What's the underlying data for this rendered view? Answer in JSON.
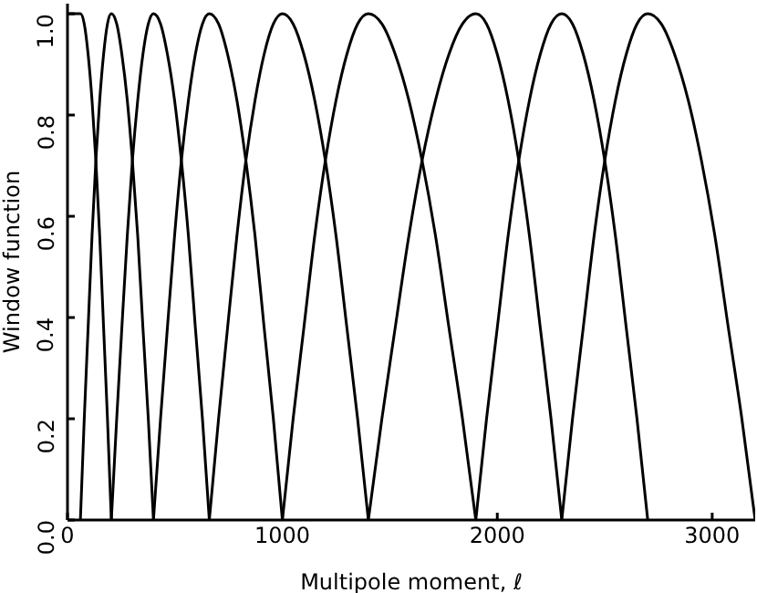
{
  "chart_data": {
    "type": "line",
    "xlabel": "Multipole moment, ℓ",
    "ylabel": "Window function",
    "xlim": [
      0,
      3200
    ],
    "xticks": [
      0,
      1000,
      2000,
      3000
    ],
    "ylim": [
      0,
      1.02
    ],
    "yticks": [
      {
        "value": 0,
        "label": "0.0"
      },
      {
        "value": 0.2,
        "label": "0.2"
      },
      {
        "value": 0.4,
        "label": "0.4"
      },
      {
        "value": 0.6,
        "label": "0.6"
      },
      {
        "value": 0.8,
        "label": "0.8"
      },
      {
        "value": 1,
        "label": "1.0"
      }
    ],
    "grid": false,
    "legend": false,
    "marker": "none",
    "line_style": "solid",
    "series": [
      {
        "color": "#000000",
        "x": [
          0,
          60,
          78,
          96,
          114,
          132,
          150,
          168,
          186,
          204
        ],
        "values": [
          1,
          1,
          0.98,
          0.92,
          0.83,
          0.71,
          0.56,
          0.38,
          0.2,
          0
        ]
      },
      {
        "color": "#000000",
        "x": [
          60,
          78,
          96,
          114,
          132,
          150,
          168,
          186,
          204,
          229,
          253,
          278,
          302,
          327,
          351,
          376,
          400
        ],
        "values": [
          0,
          0.2,
          0.38,
          0.56,
          0.71,
          0.83,
          0.92,
          0.98,
          1,
          0.98,
          0.92,
          0.83,
          0.71,
          0.56,
          0.38,
          0.2,
          0
        ]
      },
      {
        "color": "#000000",
        "x": [
          204,
          229,
          253,
          278,
          302,
          327,
          351,
          376,
          400,
          433,
          465,
          498,
          530,
          563,
          595,
          628,
          660
        ],
        "values": [
          0,
          0.2,
          0.38,
          0.56,
          0.71,
          0.83,
          0.92,
          0.98,
          1,
          0.98,
          0.92,
          0.83,
          0.71,
          0.56,
          0.38,
          0.2,
          0
        ]
      },
      {
        "color": "#000000",
        "x": [
          400,
          433,
          465,
          498,
          530,
          563,
          595,
          628,
          660,
          703,
          745,
          788,
          830,
          873,
          915,
          958,
          1000
        ],
        "values": [
          0,
          0.2,
          0.38,
          0.56,
          0.71,
          0.83,
          0.92,
          0.98,
          1,
          0.98,
          0.92,
          0.83,
          0.71,
          0.56,
          0.38,
          0.2,
          0
        ]
      },
      {
        "color": "#000000",
        "x": [
          660,
          703,
          745,
          788,
          830,
          873,
          915,
          958,
          1000,
          1050,
          1100,
          1150,
          1200,
          1250,
          1300,
          1350,
          1400
        ],
        "values": [
          0,
          0.2,
          0.38,
          0.56,
          0.71,
          0.83,
          0.92,
          0.98,
          1,
          0.98,
          0.92,
          0.83,
          0.71,
          0.56,
          0.38,
          0.2,
          0
        ]
      },
      {
        "color": "#000000",
        "x": [
          1000,
          1050,
          1100,
          1150,
          1200,
          1250,
          1300,
          1350,
          1400,
          1463,
          1525,
          1588,
          1650,
          1713,
          1775,
          1838,
          1900
        ],
        "values": [
          0,
          0.2,
          0.38,
          0.56,
          0.71,
          0.83,
          0.92,
          0.98,
          1,
          0.98,
          0.92,
          0.83,
          0.71,
          0.56,
          0.38,
          0.2,
          0
        ]
      },
      {
        "color": "#000000",
        "x": [
          1400,
          1463,
          1525,
          1588,
          1650,
          1713,
          1775,
          1838,
          1900,
          1950,
          2000,
          2050,
          2100,
          2150,
          2200,
          2250,
          2300
        ],
        "values": [
          0,
          0.2,
          0.38,
          0.56,
          0.71,
          0.83,
          0.92,
          0.98,
          1,
          0.98,
          0.92,
          0.83,
          0.71,
          0.56,
          0.38,
          0.2,
          0
        ]
      },
      {
        "color": "#000000",
        "x": [
          1900,
          1950,
          2000,
          2050,
          2100,
          2150,
          2200,
          2250,
          2300,
          2350,
          2400,
          2450,
          2500,
          2550,
          2600,
          2650,
          2700
        ],
        "values": [
          0,
          0.2,
          0.38,
          0.56,
          0.71,
          0.83,
          0.92,
          0.98,
          1,
          0.98,
          0.92,
          0.83,
          0.71,
          0.56,
          0.38,
          0.2,
          0
        ]
      },
      {
        "color": "#000000",
        "x": [
          2300,
          2350,
          2400,
          2450,
          2500,
          2550,
          2600,
          2650,
          2700,
          2763,
          2825,
          2888,
          2950,
          3013,
          3075,
          3138,
          3200
        ],
        "values": [
          0,
          0.2,
          0.38,
          0.56,
          0.71,
          0.83,
          0.92,
          0.98,
          1,
          0.98,
          0.92,
          0.83,
          0.71,
          0.56,
          0.38,
          0.2,
          0
        ]
      }
    ]
  }
}
